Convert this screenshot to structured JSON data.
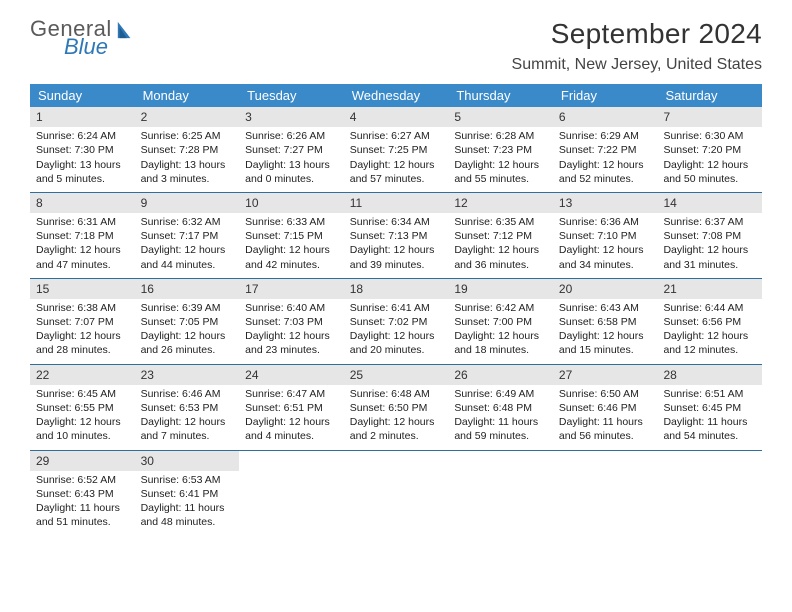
{
  "logo": {
    "word1": "General",
    "word2": "Blue"
  },
  "title": "September 2024",
  "location": "Summit, New Jersey, United States",
  "colors": {
    "header_bg": "#3a89c9",
    "header_text": "#ffffff",
    "daynum_bg": "#e6e6e6",
    "week_border": "#2f6fa0",
    "logo_gray": "#5a5a5a",
    "logo_blue": "#2f78b7"
  },
  "day_headers": [
    "Sunday",
    "Monday",
    "Tuesday",
    "Wednesday",
    "Thursday",
    "Friday",
    "Saturday"
  ],
  "weeks": [
    [
      {
        "n": "1",
        "sr": "6:24 AM",
        "ss": "7:30 PM",
        "dl": "13 hours and 5 minutes."
      },
      {
        "n": "2",
        "sr": "6:25 AM",
        "ss": "7:28 PM",
        "dl": "13 hours and 3 minutes."
      },
      {
        "n": "3",
        "sr": "6:26 AM",
        "ss": "7:27 PM",
        "dl": "13 hours and 0 minutes."
      },
      {
        "n": "4",
        "sr": "6:27 AM",
        "ss": "7:25 PM",
        "dl": "12 hours and 57 minutes."
      },
      {
        "n": "5",
        "sr": "6:28 AM",
        "ss": "7:23 PM",
        "dl": "12 hours and 55 minutes."
      },
      {
        "n": "6",
        "sr": "6:29 AM",
        "ss": "7:22 PM",
        "dl": "12 hours and 52 minutes."
      },
      {
        "n": "7",
        "sr": "6:30 AM",
        "ss": "7:20 PM",
        "dl": "12 hours and 50 minutes."
      }
    ],
    [
      {
        "n": "8",
        "sr": "6:31 AM",
        "ss": "7:18 PM",
        "dl": "12 hours and 47 minutes."
      },
      {
        "n": "9",
        "sr": "6:32 AM",
        "ss": "7:17 PM",
        "dl": "12 hours and 44 minutes."
      },
      {
        "n": "10",
        "sr": "6:33 AM",
        "ss": "7:15 PM",
        "dl": "12 hours and 42 minutes."
      },
      {
        "n": "11",
        "sr": "6:34 AM",
        "ss": "7:13 PM",
        "dl": "12 hours and 39 minutes."
      },
      {
        "n": "12",
        "sr": "6:35 AM",
        "ss": "7:12 PM",
        "dl": "12 hours and 36 minutes."
      },
      {
        "n": "13",
        "sr": "6:36 AM",
        "ss": "7:10 PM",
        "dl": "12 hours and 34 minutes."
      },
      {
        "n": "14",
        "sr": "6:37 AM",
        "ss": "7:08 PM",
        "dl": "12 hours and 31 minutes."
      }
    ],
    [
      {
        "n": "15",
        "sr": "6:38 AM",
        "ss": "7:07 PM",
        "dl": "12 hours and 28 minutes."
      },
      {
        "n": "16",
        "sr": "6:39 AM",
        "ss": "7:05 PM",
        "dl": "12 hours and 26 minutes."
      },
      {
        "n": "17",
        "sr": "6:40 AM",
        "ss": "7:03 PM",
        "dl": "12 hours and 23 minutes."
      },
      {
        "n": "18",
        "sr": "6:41 AM",
        "ss": "7:02 PM",
        "dl": "12 hours and 20 minutes."
      },
      {
        "n": "19",
        "sr": "6:42 AM",
        "ss": "7:00 PM",
        "dl": "12 hours and 18 minutes."
      },
      {
        "n": "20",
        "sr": "6:43 AM",
        "ss": "6:58 PM",
        "dl": "12 hours and 15 minutes."
      },
      {
        "n": "21",
        "sr": "6:44 AM",
        "ss": "6:56 PM",
        "dl": "12 hours and 12 minutes."
      }
    ],
    [
      {
        "n": "22",
        "sr": "6:45 AM",
        "ss": "6:55 PM",
        "dl": "12 hours and 10 minutes."
      },
      {
        "n": "23",
        "sr": "6:46 AM",
        "ss": "6:53 PM",
        "dl": "12 hours and 7 minutes."
      },
      {
        "n": "24",
        "sr": "6:47 AM",
        "ss": "6:51 PM",
        "dl": "12 hours and 4 minutes."
      },
      {
        "n": "25",
        "sr": "6:48 AM",
        "ss": "6:50 PM",
        "dl": "12 hours and 2 minutes."
      },
      {
        "n": "26",
        "sr": "6:49 AM",
        "ss": "6:48 PM",
        "dl": "11 hours and 59 minutes."
      },
      {
        "n": "27",
        "sr": "6:50 AM",
        "ss": "6:46 PM",
        "dl": "11 hours and 56 minutes."
      },
      {
        "n": "28",
        "sr": "6:51 AM",
        "ss": "6:45 PM",
        "dl": "11 hours and 54 minutes."
      }
    ],
    [
      {
        "n": "29",
        "sr": "6:52 AM",
        "ss": "6:43 PM",
        "dl": "11 hours and 51 minutes."
      },
      {
        "n": "30",
        "sr": "6:53 AM",
        "ss": "6:41 PM",
        "dl": "11 hours and 48 minutes."
      },
      null,
      null,
      null,
      null,
      null
    ]
  ],
  "labels": {
    "sunrise": "Sunrise:",
    "sunset": "Sunset:",
    "daylight": "Daylight:"
  }
}
